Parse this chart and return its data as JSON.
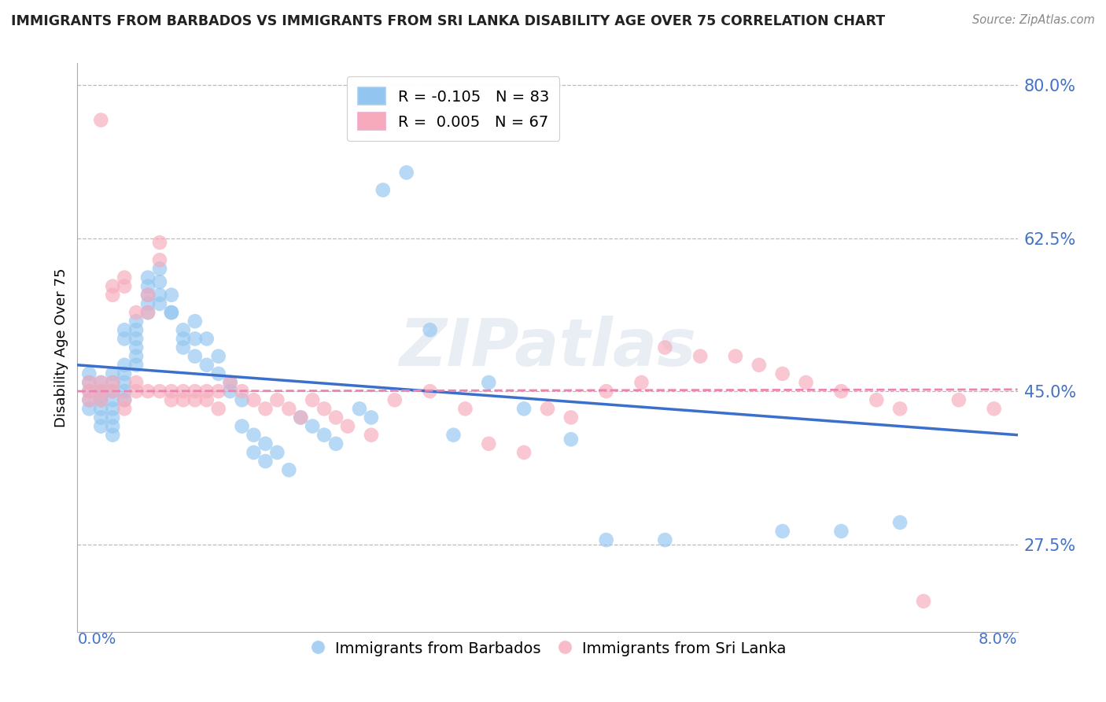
{
  "title": "IMMIGRANTS FROM BARBADOS VS IMMIGRANTS FROM SRI LANKA DISABILITY AGE OVER 75 CORRELATION CHART",
  "source": "Source: ZipAtlas.com",
  "ylabel": "Disability Age Over 75",
  "x_min": 0.0,
  "x_max": 0.08,
  "y_min": 0.175,
  "y_max": 0.825,
  "y_ticks": [
    0.275,
    0.45,
    0.625,
    0.8
  ],
  "y_tick_labels": [
    "27.5%",
    "45.0%",
    "62.5%",
    "80.0%"
  ],
  "blue_color": "#92C5F0",
  "pink_color": "#F7AABB",
  "blue_line_color": "#3B6FCC",
  "pink_line_color": "#EE82B0",
  "legend_label_blue": "R = -0.105   N = 83",
  "legend_label_pink": "R =  0.005   N = 67",
  "legend_label_bottom_blue": "Immigrants from Barbados",
  "legend_label_bottom_pink": "Immigrants from Sri Lanka",
  "watermark": "ZIPatlas",
  "title_color": "#222222",
  "axis_tick_color": "#4472C4",
  "grid_color": "#BBBBBB",
  "blue_scatter_x": [
    0.001,
    0.001,
    0.001,
    0.001,
    0.001,
    0.002,
    0.002,
    0.002,
    0.002,
    0.002,
    0.002,
    0.002,
    0.003,
    0.003,
    0.003,
    0.003,
    0.003,
    0.003,
    0.003,
    0.003,
    0.004,
    0.004,
    0.004,
    0.004,
    0.004,
    0.004,
    0.004,
    0.005,
    0.005,
    0.005,
    0.005,
    0.005,
    0.005,
    0.006,
    0.006,
    0.006,
    0.006,
    0.006,
    0.007,
    0.007,
    0.007,
    0.007,
    0.008,
    0.008,
    0.008,
    0.009,
    0.009,
    0.009,
    0.01,
    0.01,
    0.01,
    0.011,
    0.011,
    0.012,
    0.012,
    0.013,
    0.013,
    0.014,
    0.014,
    0.015,
    0.015,
    0.016,
    0.016,
    0.017,
    0.018,
    0.019,
    0.02,
    0.021,
    0.022,
    0.024,
    0.025,
    0.026,
    0.028,
    0.03,
    0.032,
    0.035,
    0.038,
    0.042,
    0.045,
    0.05,
    0.06,
    0.065,
    0.07
  ],
  "blue_scatter_y": [
    0.44,
    0.46,
    0.47,
    0.45,
    0.43,
    0.44,
    0.45,
    0.46,
    0.445,
    0.43,
    0.42,
    0.41,
    0.44,
    0.46,
    0.47,
    0.45,
    0.43,
    0.42,
    0.41,
    0.4,
    0.48,
    0.47,
    0.46,
    0.45,
    0.44,
    0.52,
    0.51,
    0.53,
    0.52,
    0.51,
    0.5,
    0.49,
    0.48,
    0.57,
    0.56,
    0.55,
    0.54,
    0.58,
    0.59,
    0.575,
    0.56,
    0.55,
    0.56,
    0.54,
    0.54,
    0.52,
    0.51,
    0.5,
    0.53,
    0.51,
    0.49,
    0.51,
    0.48,
    0.49,
    0.47,
    0.46,
    0.45,
    0.44,
    0.41,
    0.4,
    0.38,
    0.39,
    0.37,
    0.38,
    0.36,
    0.42,
    0.41,
    0.4,
    0.39,
    0.43,
    0.42,
    0.68,
    0.7,
    0.52,
    0.4,
    0.46,
    0.43,
    0.395,
    0.28,
    0.28,
    0.29,
    0.29,
    0.3
  ],
  "pink_scatter_x": [
    0.001,
    0.001,
    0.001,
    0.002,
    0.002,
    0.002,
    0.002,
    0.003,
    0.003,
    0.003,
    0.003,
    0.004,
    0.004,
    0.004,
    0.004,
    0.005,
    0.005,
    0.005,
    0.006,
    0.006,
    0.006,
    0.007,
    0.007,
    0.007,
    0.008,
    0.008,
    0.009,
    0.009,
    0.01,
    0.01,
    0.011,
    0.011,
    0.012,
    0.012,
    0.013,
    0.014,
    0.015,
    0.016,
    0.017,
    0.018,
    0.019,
    0.02,
    0.021,
    0.022,
    0.023,
    0.025,
    0.027,
    0.03,
    0.033,
    0.035,
    0.038,
    0.04,
    0.042,
    0.045,
    0.048,
    0.05,
    0.053,
    0.056,
    0.058,
    0.06,
    0.062,
    0.065,
    0.068,
    0.07,
    0.072,
    0.075,
    0.078
  ],
  "pink_scatter_y": [
    0.44,
    0.45,
    0.46,
    0.44,
    0.45,
    0.76,
    0.46,
    0.46,
    0.45,
    0.57,
    0.56,
    0.58,
    0.57,
    0.44,
    0.43,
    0.45,
    0.46,
    0.54,
    0.56,
    0.54,
    0.45,
    0.45,
    0.62,
    0.6,
    0.45,
    0.44,
    0.45,
    0.44,
    0.45,
    0.44,
    0.45,
    0.44,
    0.45,
    0.43,
    0.46,
    0.45,
    0.44,
    0.43,
    0.44,
    0.43,
    0.42,
    0.44,
    0.43,
    0.42,
    0.41,
    0.4,
    0.44,
    0.45,
    0.43,
    0.39,
    0.38,
    0.43,
    0.42,
    0.45,
    0.46,
    0.5,
    0.49,
    0.49,
    0.48,
    0.47,
    0.46,
    0.45,
    0.44,
    0.43,
    0.21,
    0.44,
    0.43
  ],
  "blue_trend_x": [
    0.0,
    0.08
  ],
  "blue_trend_y": [
    0.48,
    0.4
  ],
  "pink_trend_x": [
    0.0,
    0.08
  ],
  "pink_trend_y": [
    0.45,
    0.452
  ]
}
